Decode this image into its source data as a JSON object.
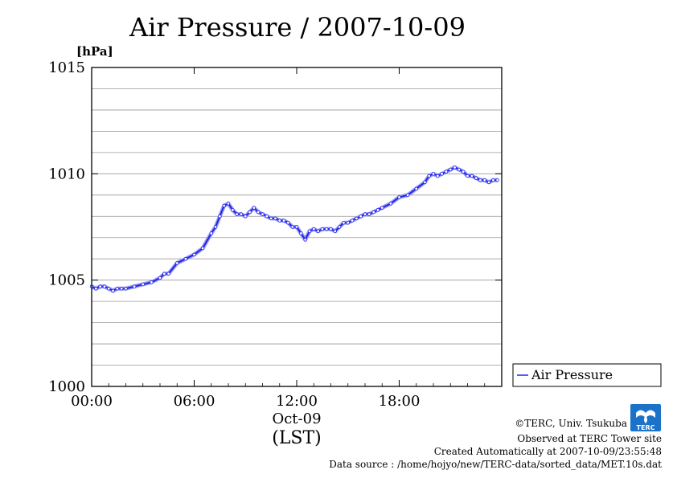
{
  "chart_data": {
    "type": "line",
    "title": "Air Pressure / 2007-10-09",
    "ylabel": "[hPa]",
    "xlabel": "",
    "x_tick_labels": [
      "00:00",
      "06:00",
      "12:00",
      "18:00"
    ],
    "x_date_label": "Oct-09",
    "x_timezone_label": "(LST)",
    "ylim": [
      1000,
      1015
    ],
    "y_ticks": [
      1000,
      1005,
      1010,
      1015
    ],
    "y_tick_labels": [
      "1000",
      "1005",
      "1010",
      "1015"
    ],
    "y_minor_step": 1,
    "xlim_hours": [
      0,
      24
    ],
    "grid": "horizontal",
    "legend_position": "right",
    "series": [
      {
        "name": "Air Pressure",
        "color": "#2222ee",
        "x_hours": [
          0,
          0.25,
          0.5,
          0.75,
          1.0,
          1.25,
          1.5,
          1.75,
          2.0,
          2.5,
          3.0,
          3.5,
          4.0,
          4.25,
          4.5,
          5.0,
          5.5,
          6.0,
          6.5,
          7.0,
          7.25,
          7.5,
          7.75,
          8.0,
          8.25,
          8.5,
          8.75,
          9.0,
          9.25,
          9.5,
          9.75,
          10.0,
          10.25,
          10.5,
          10.75,
          11.0,
          11.25,
          11.5,
          11.75,
          12.0,
          12.25,
          12.5,
          12.75,
          13.0,
          13.25,
          13.5,
          13.75,
          14.0,
          14.25,
          14.5,
          14.75,
          15.0,
          15.25,
          15.5,
          15.75,
          16.0,
          16.25,
          16.5,
          16.75,
          17.0,
          17.5,
          18.0,
          18.5,
          19.0,
          19.5,
          19.75,
          20.0,
          20.25,
          20.5,
          20.75,
          21.0,
          21.25,
          21.5,
          21.75,
          22.0,
          22.25,
          22.5,
          22.75,
          23.0,
          23.25,
          23.5,
          23.75
        ],
        "values": [
          1004.7,
          1004.6,
          1004.7,
          1004.7,
          1004.6,
          1004.5,
          1004.6,
          1004.6,
          1004.6,
          1004.7,
          1004.8,
          1004.9,
          1005.1,
          1005.3,
          1005.3,
          1005.8,
          1006.0,
          1006.2,
          1006.5,
          1007.2,
          1007.5,
          1008.0,
          1008.5,
          1008.6,
          1008.3,
          1008.1,
          1008.1,
          1008.0,
          1008.2,
          1008.4,
          1008.2,
          1008.1,
          1008.0,
          1007.9,
          1007.9,
          1007.8,
          1007.8,
          1007.7,
          1007.5,
          1007.5,
          1007.2,
          1006.9,
          1007.3,
          1007.4,
          1007.3,
          1007.4,
          1007.4,
          1007.4,
          1007.3,
          1007.5,
          1007.7,
          1007.7,
          1007.8,
          1007.9,
          1008.0,
          1008.1,
          1008.1,
          1008.2,
          1008.3,
          1008.4,
          1008.6,
          1008.9,
          1009.0,
          1009.3,
          1009.6,
          1009.9,
          1010.0,
          1009.9,
          1010.0,
          1010.1,
          1010.2,
          1010.3,
          1010.2,
          1010.1,
          1009.9,
          1009.9,
          1009.8,
          1009.7,
          1009.7,
          1009.6,
          1009.7,
          1009.7
        ]
      }
    ]
  },
  "footer": {
    "copyright": "©TERC, Univ. Tsukuba",
    "observed": "Observed at TERC Tower site",
    "created": "Created Automatically at 2007-10-09/23:55:48",
    "source": "Data source : /home/hojyo/new/TERC-data/sorted_data/MET.10s.dat"
  },
  "logo": {
    "name": "terc-logo",
    "text": "TERC",
    "color": "#1a73c8"
  }
}
